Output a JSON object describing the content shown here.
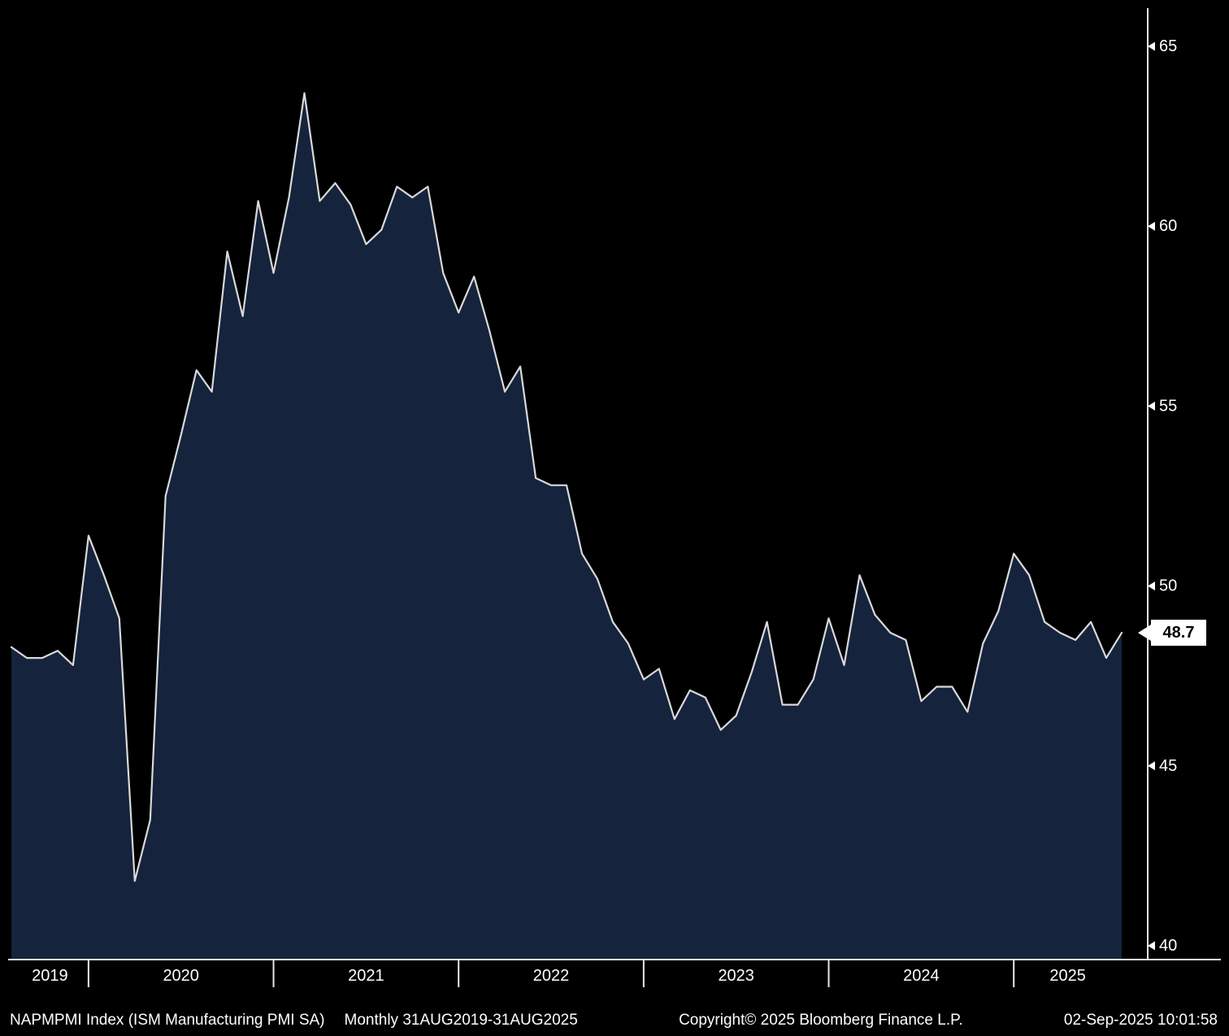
{
  "chart_data": {
    "type": "area",
    "title": "NAPMPMI Index (ISM Manufacturing PMI SA)",
    "series_name": "ISM Manufacturing PMI SA",
    "periodicity": "Monthly",
    "date_range": "31AUG2019-31AUG2025",
    "start_month": "2019-08",
    "end_month": "2025-08",
    "ylim": [
      40,
      65
    ],
    "y_ticks": [
      65,
      60,
      55,
      50,
      45,
      40
    ],
    "grid": false,
    "legend_position": "none",
    "last_value": 48.7,
    "last_value_label": "48.7",
    "x_tick_labels": [
      "2019",
      "2020",
      "2021",
      "2022",
      "2023",
      "2024",
      "2025"
    ],
    "year_start_indices": [
      0,
      5,
      17,
      29,
      41,
      53,
      65
    ],
    "values": [
      48.3,
      48.0,
      48.0,
      48.2,
      47.8,
      51.4,
      50.3,
      49.1,
      41.8,
      43.5,
      52.5,
      54.2,
      56.0,
      55.4,
      59.3,
      57.5,
      60.7,
      58.7,
      60.8,
      63.7,
      60.7,
      61.2,
      60.6,
      59.5,
      59.9,
      61.1,
      60.8,
      61.1,
      58.7,
      57.6,
      58.6,
      57.1,
      55.4,
      56.1,
      53.0,
      52.8,
      52.8,
      50.9,
      50.2,
      49.0,
      48.4,
      47.4,
      47.7,
      46.3,
      47.1,
      46.9,
      46.0,
      46.4,
      47.6,
      49.0,
      46.7,
      46.7,
      47.4,
      49.1,
      47.8,
      50.3,
      49.2,
      48.7,
      48.5,
      46.8,
      47.2,
      47.2,
      46.5,
      48.4,
      49.3,
      50.9,
      50.3,
      49.0,
      48.7,
      48.5,
      49.0,
      48.0,
      48.7
    ],
    "colors": {
      "background": "#000000",
      "area_fill": "#15233d",
      "line": "#d9d9d9",
      "axis": "#e8e8e8",
      "text": "#ffffff",
      "tag_bg": "#ffffff",
      "tag_text": "#000000"
    }
  },
  "footer": {
    "security": "NAPMPMI Index (ISM Manufacturing PMI SA)",
    "period_range": "Monthly 31AUG2019-31AUG2025",
    "copyright": "Copyright© 2025 Bloomberg Finance L.P.",
    "datetime": "02-Sep-2025 10:01:58"
  }
}
